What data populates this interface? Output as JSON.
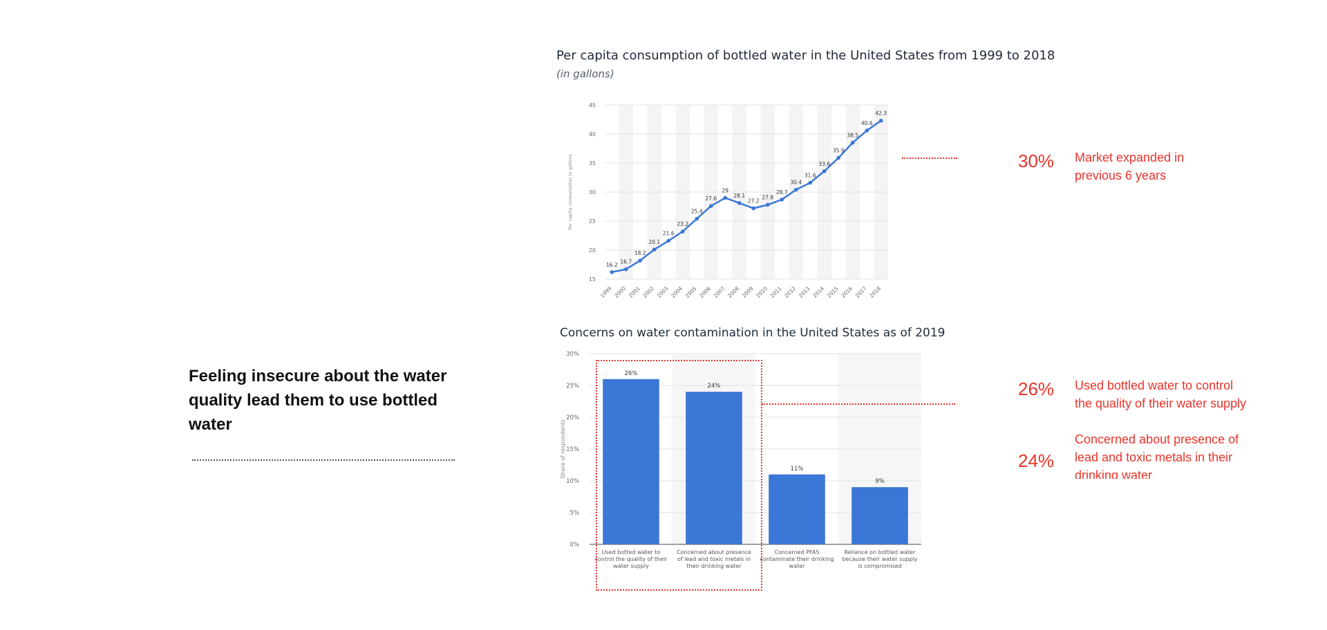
{
  "headline": "Feeling insecure about the water quality lead them to use bottled water",
  "colors": {
    "series": "#3b77d6",
    "accent": "#e8332a",
    "axis_text": "#666666"
  },
  "chart_data": [
    {
      "type": "line",
      "title": "Per capita consumption of bottled water in the United States from 1999 to 2018",
      "subtitle": "(in gallons)",
      "ylabel": "Per capita consumption in gallons",
      "x": [
        "1999",
        "2000",
        "2001",
        "2002",
        "2003",
        "2004",
        "2005",
        "2006",
        "2007",
        "2008",
        "2009",
        "2010",
        "2011",
        "2012",
        "2013",
        "2014",
        "2015",
        "2016",
        "2017",
        "2018"
      ],
      "values": [
        16.2,
        16.7,
        18.2,
        20.1,
        21.6,
        23.2,
        25.4,
        27.6,
        29,
        28.1,
        27.2,
        27.8,
        28.7,
        30.4,
        31.6,
        33.6,
        35.9,
        38.5,
        40.6,
        42.3
      ],
      "data_labels": [
        "16.2",
        "16.7",
        "18.2",
        "20.1",
        "21.6",
        "23.2",
        "25.4",
        "27.6",
        "29",
        "28.1",
        "27.2",
        "27.8",
        "28.7",
        "30.4",
        "31.6",
        "33.6",
        "35.9",
        "38.5",
        "40.6",
        "42.3"
      ],
      "yticks": [
        "15",
        "20",
        "25",
        "30",
        "35",
        "40",
        "45"
      ],
      "ylim": [
        15,
        45
      ],
      "grid": true
    },
    {
      "type": "bar",
      "title": "Concerns on water contamination in the United States as of 2019",
      "ylabel": "Share of respondents",
      "categories": [
        [
          "Used botted water to",
          "control the quality of their",
          "water supply"
        ],
        [
          "Concerned about presence",
          "of lead and toxic metals in",
          "their drinking water"
        ],
        [
          "Concerned PFAS",
          "contaminate their drinking",
          "water"
        ],
        [
          "Reliance on bottled water",
          "because their water supply",
          "is compromised"
        ]
      ],
      "values": [
        26,
        24,
        11,
        9
      ],
      "data_labels": [
        "26%",
        "24%",
        "11%",
        "9%"
      ],
      "yticks": [
        "0%",
        "5%",
        "10%",
        "15%",
        "20%",
        "25%",
        "30%"
      ],
      "ylim": [
        0,
        30
      ],
      "grid": true
    }
  ],
  "callouts": [
    {
      "pct": "30%",
      "text_lines": [
        "Market expanded in",
        "previous 6 years"
      ]
    },
    {
      "pct": "26%",
      "text_lines": [
        "Used bottled water to control",
        "the quality of their water supply"
      ]
    },
    {
      "pct": "24%",
      "text_lines": [
        "Concerned about presence of",
        "lead and toxic metals in their",
        "drinking water"
      ]
    }
  ]
}
